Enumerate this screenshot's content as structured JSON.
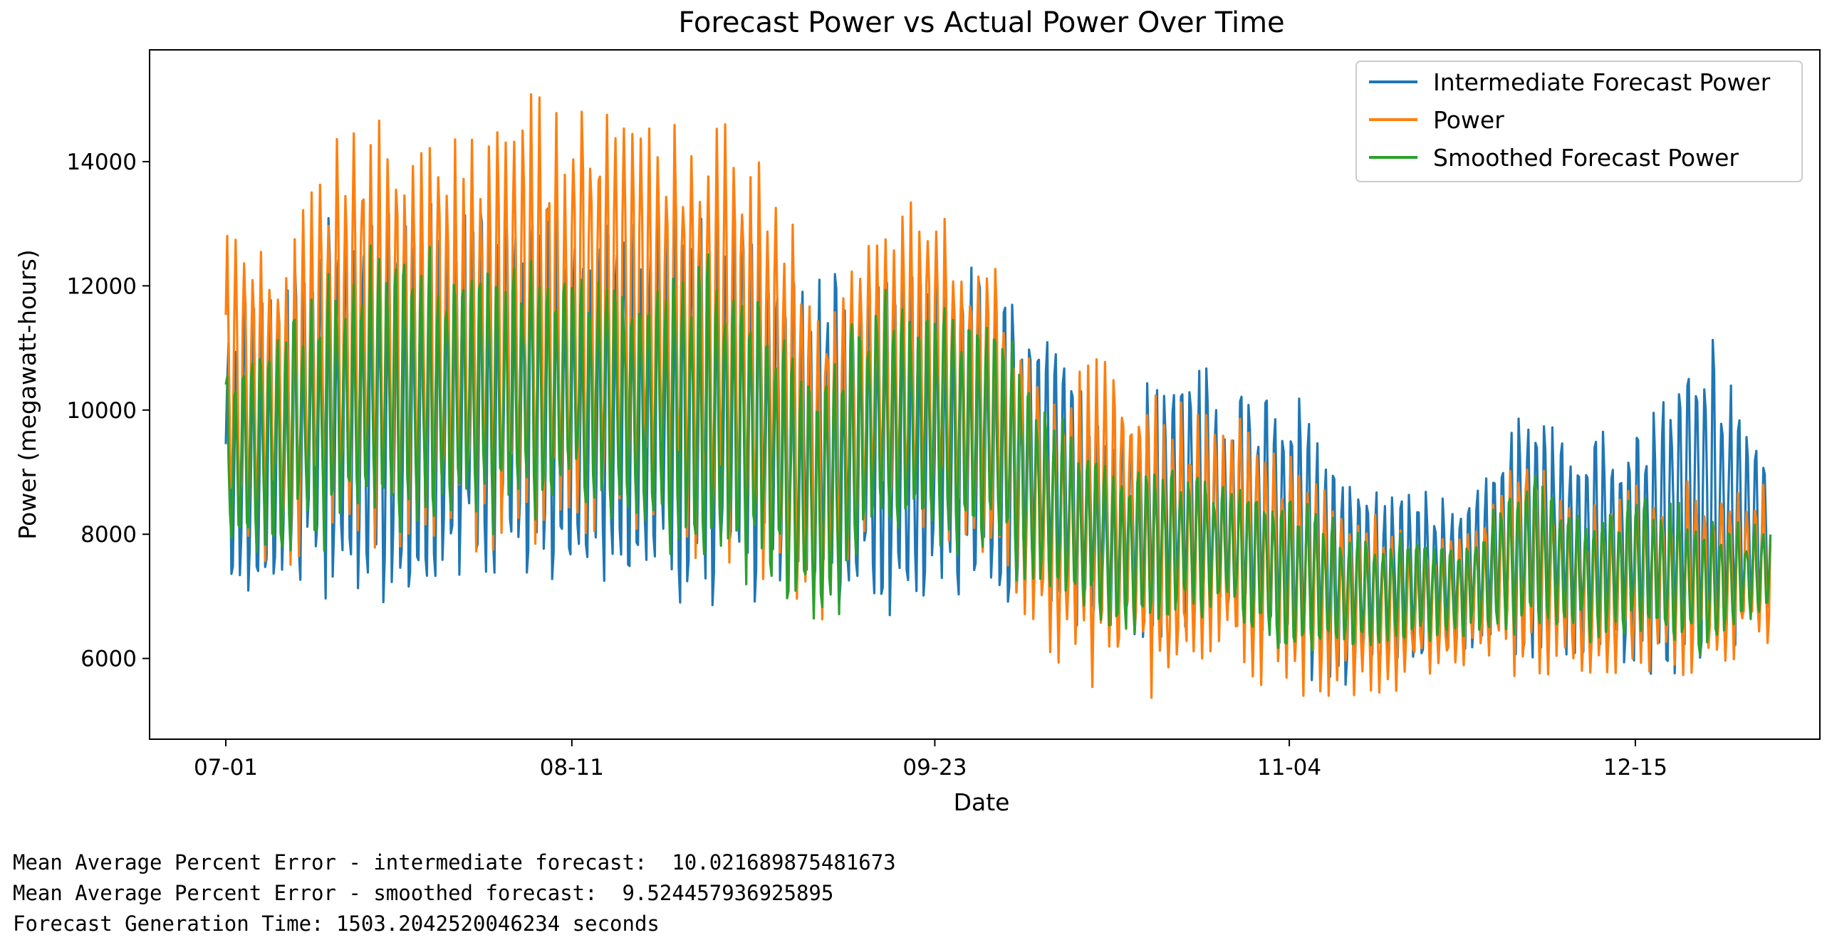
{
  "chart_data": {
    "type": "line",
    "title": "Forecast Power vs Actual Power Over Time",
    "xlabel": "Date",
    "ylabel": "Power (megawatt-hours)",
    "x_tick_labels": [
      "07-01",
      "08-11",
      "09-23",
      "11-04",
      "12-15"
    ],
    "y_ticks": [
      6000,
      8000,
      10000,
      12000,
      14000
    ],
    "ylim": [
      4700,
      15800
    ],
    "x_range": [
      "07-01",
      "12-31"
    ],
    "grid": false,
    "legend_position": "upper right",
    "series": [
      {
        "name": "Intermediate Forecast Power",
        "color": "#1f77b4",
        "envelope": [
          {
            "date": "07-01",
            "low": 6800,
            "high": 11600
          },
          {
            "date": "07-08",
            "low": 6500,
            "high": 12500
          },
          {
            "date": "07-15",
            "low": 6900,
            "high": 13400
          },
          {
            "date": "07-22",
            "low": 6300,
            "high": 13500
          },
          {
            "date": "07-29",
            "low": 6900,
            "high": 13800
          },
          {
            "date": "08-05",
            "low": 7200,
            "high": 13700
          },
          {
            "date": "08-12",
            "low": 6700,
            "high": 13500
          },
          {
            "date": "08-19",
            "low": 6700,
            "high": 13500
          },
          {
            "date": "08-26",
            "low": 6500,
            "high": 14000
          },
          {
            "date": "09-02",
            "low": 6800,
            "high": 13300
          },
          {
            "date": "09-09",
            "low": 6400,
            "high": 12400
          },
          {
            "date": "09-16",
            "low": 6500,
            "high": 12900
          },
          {
            "date": "09-23",
            "low": 6400,
            "high": 12500
          },
          {
            "date": "09-30",
            "low": 6600,
            "high": 12400
          },
          {
            "date": "10-07",
            "low": 6500,
            "high": 11400
          },
          {
            "date": "10-14",
            "low": 6000,
            "high": 9800
          },
          {
            "date": "10-21",
            "low": 6100,
            "high": 10900
          },
          {
            "date": "10-28",
            "low": 6200,
            "high": 10600
          },
          {
            "date": "11-04",
            "low": 5500,
            "high": 10700
          },
          {
            "date": "11-11",
            "low": 5300,
            "high": 9000
          },
          {
            "date": "11-18",
            "low": 5600,
            "high": 8900
          },
          {
            "date": "11-25",
            "low": 6000,
            "high": 8600
          },
          {
            "date": "12-02",
            "low": 5700,
            "high": 10300
          },
          {
            "date": "12-09",
            "low": 5500,
            "high": 9800
          },
          {
            "date": "12-16",
            "low": 5700,
            "high": 10200
          },
          {
            "date": "12-23",
            "low": 5600,
            "high": 11600
          },
          {
            "date": "12-31",
            "low": 6600,
            "high": 9300
          }
        ]
      },
      {
        "name": "Power",
        "color": "#ff7f0e",
        "envelope": [
          {
            "date": "07-01",
            "low": 7700,
            "high": 13200
          },
          {
            "date": "07-08",
            "low": 7500,
            "high": 12600
          },
          {
            "date": "07-15",
            "low": 7600,
            "high": 14600
          },
          {
            "date": "07-22",
            "low": 7500,
            "high": 14700
          },
          {
            "date": "07-29",
            "low": 7700,
            "high": 14400
          },
          {
            "date": "08-05",
            "low": 7800,
            "high": 15100
          },
          {
            "date": "08-12",
            "low": 8000,
            "high": 15000
          },
          {
            "date": "08-19",
            "low": 8000,
            "high": 15200
          },
          {
            "date": "08-26",
            "low": 7600,
            "high": 14600
          },
          {
            "date": "09-02",
            "low": 7200,
            "high": 14600
          },
          {
            "date": "09-09",
            "low": 6400,
            "high": 12000
          },
          {
            "date": "09-16",
            "low": 8000,
            "high": 13000
          },
          {
            "date": "09-23",
            "low": 7600,
            "high": 13700
          },
          {
            "date": "09-30",
            "low": 7500,
            "high": 12600
          },
          {
            "date": "10-07",
            "low": 6000,
            "high": 10300
          },
          {
            "date": "10-14",
            "low": 5300,
            "high": 11000
          },
          {
            "date": "10-21",
            "low": 5400,
            "high": 10200
          },
          {
            "date": "10-28",
            "low": 5600,
            "high": 10400
          },
          {
            "date": "11-04",
            "low": 5400,
            "high": 9500
          },
          {
            "date": "11-11",
            "low": 5400,
            "high": 8400
          },
          {
            "date": "11-18",
            "low": 5500,
            "high": 8200
          },
          {
            "date": "11-25",
            "low": 5800,
            "high": 8100
          },
          {
            "date": "12-02",
            "low": 5700,
            "high": 9800
          },
          {
            "date": "12-09",
            "low": 5500,
            "high": 8600
          },
          {
            "date": "12-16",
            "low": 5800,
            "high": 8800
          },
          {
            "date": "12-23",
            "low": 5700,
            "high": 8900
          },
          {
            "date": "12-31",
            "low": 6100,
            "high": 8800
          }
        ]
      },
      {
        "name": "Smoothed Forecast Power",
        "color": "#2ca02c",
        "envelope": [
          {
            "date": "07-01",
            "low": 7300,
            "high": 11000
          },
          {
            "date": "07-08",
            "low": 7600,
            "high": 11600
          },
          {
            "date": "07-15",
            "low": 7800,
            "high": 12400
          },
          {
            "date": "07-22",
            "low": 7700,
            "high": 13000
          },
          {
            "date": "07-29",
            "low": 8000,
            "high": 12600
          },
          {
            "date": "08-05",
            "low": 8000,
            "high": 12700
          },
          {
            "date": "08-12",
            "low": 8300,
            "high": 12400
          },
          {
            "date": "08-19",
            "low": 7900,
            "high": 12600
          },
          {
            "date": "08-26",
            "low": 7300,
            "high": 12800
          },
          {
            "date": "09-02",
            "low": 7000,
            "high": 12300
          },
          {
            "date": "09-09",
            "low": 6000,
            "high": 10600
          },
          {
            "date": "09-16",
            "low": 7800,
            "high": 12000
          },
          {
            "date": "09-23",
            "low": 7700,
            "high": 12000
          },
          {
            "date": "09-30",
            "low": 7600,
            "high": 11800
          },
          {
            "date": "10-07",
            "low": 6700,
            "high": 10000
          },
          {
            "date": "10-14",
            "low": 6300,
            "high": 9300
          },
          {
            "date": "10-21",
            "low": 6400,
            "high": 9200
          },
          {
            "date": "10-28",
            "low": 6600,
            "high": 9000
          },
          {
            "date": "11-04",
            "low": 5800,
            "high": 8800
          },
          {
            "date": "11-11",
            "low": 6000,
            "high": 8100
          },
          {
            "date": "11-18",
            "low": 6100,
            "high": 8100
          },
          {
            "date": "11-25",
            "low": 6300,
            "high": 7900
          },
          {
            "date": "12-02",
            "low": 6300,
            "high": 9200
          },
          {
            "date": "12-09",
            "low": 6200,
            "high": 8400
          },
          {
            "date": "12-16",
            "low": 6200,
            "high": 8800
          },
          {
            "date": "12-23",
            "low": 6000,
            "high": 8300
          },
          {
            "date": "12-31",
            "low": 6700,
            "high": 8200
          }
        ]
      }
    ]
  },
  "output_lines": [
    "Mean Average Percent Error - intermediate forecast:  10.021689875481673",
    "Mean Average Percent Error - smoothed forecast:  9.524457936925895",
    "Forecast Generation Time: 1503.2042520046234 seconds"
  ]
}
